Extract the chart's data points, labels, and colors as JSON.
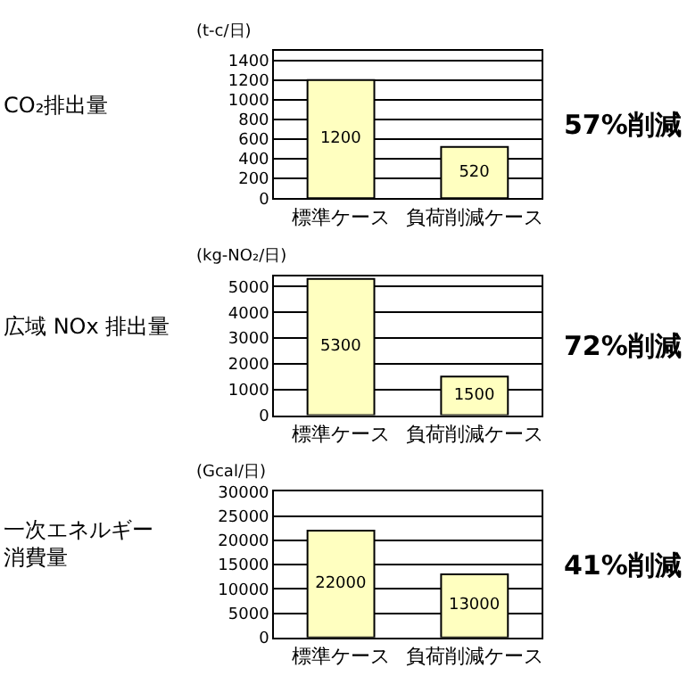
{
  "chart_data": [
    {
      "type": "bar",
      "title": "CO₂排出量",
      "ylabel": "(t-c/日)",
      "categories": [
        "標準ケース",
        "負荷削減ケース"
      ],
      "values": [
        1200,
        520
      ],
      "color": "#ffffc0",
      "ylim": [
        0,
        1500
      ],
      "yticks": [
        0,
        200,
        400,
        600,
        800,
        1000,
        1200,
        1400
      ],
      "grid": "y",
      "data_labels": true,
      "annotations": [
        "57%削減"
      ]
    },
    {
      "type": "bar",
      "title": "広域 NOx 排出量",
      "ylabel": "(kg-NO₂/日)",
      "categories": [
        "標準ケース",
        "負荷削減ケース"
      ],
      "values": [
        5300,
        1500
      ],
      "color": "#ffffc0",
      "ylim": [
        0,
        5400
      ],
      "yticks": [
        0,
        1000,
        2000,
        3000,
        4000,
        5000
      ],
      "grid": "y",
      "data_labels": true,
      "annotations": [
        "72%削減"
      ]
    },
    {
      "type": "bar",
      "title": "一次エネルギー消費量",
      "ylabel": "(Gcal/日)",
      "categories": [
        "標準ケース",
        "負荷削減ケース"
      ],
      "values": [
        22000,
        13000
      ],
      "color": "#ffffc0",
      "ylim": [
        0,
        30000
      ],
      "yticks": [
        0,
        5000,
        10000,
        15000,
        20000,
        25000,
        30000
      ],
      "grid": "y",
      "data_labels": true,
      "annotations": [
        "41%削減"
      ]
    }
  ]
}
